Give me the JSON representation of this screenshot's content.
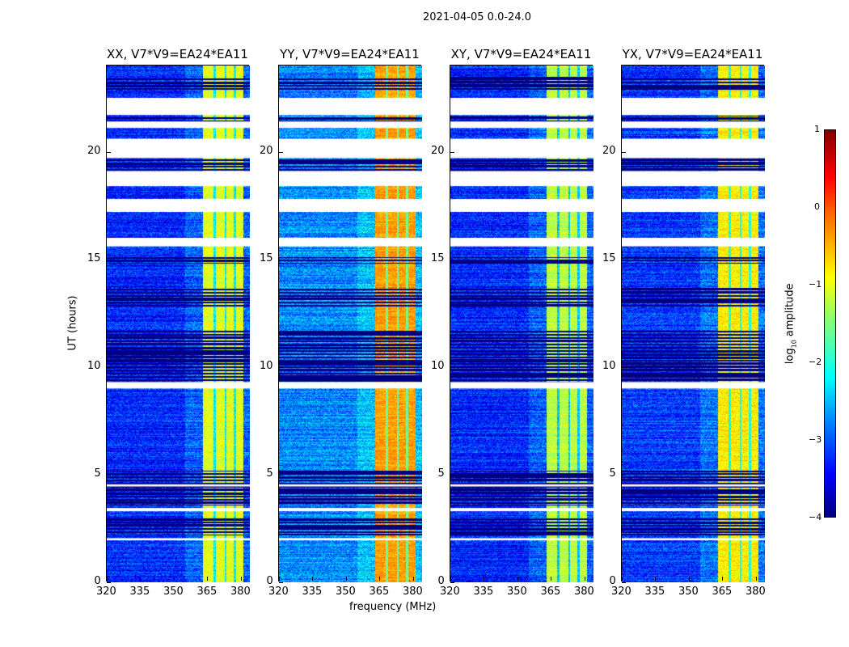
{
  "chart_data": {
    "type": "heatmap",
    "title": "2021-04-05 0.0-24.0",
    "xlabel": "frequency (MHz)",
    "ylabel": "UT (hours)",
    "xlim": [
      320,
      384
    ],
    "ylim": [
      0,
      24
    ],
    "xticks": [
      "320",
      "335",
      "350",
      "365",
      "380"
    ],
    "xtick_values": [
      320,
      335,
      350,
      365,
      380
    ],
    "yticks": [
      "0",
      "5",
      "10",
      "15",
      "20"
    ],
    "ytick_values": [
      0,
      5,
      10,
      15,
      20
    ],
    "colorbar": {
      "label": "log10 amplitude",
      "label_main": "log",
      "label_sub": "10",
      "label_rest": " amplitude",
      "range": [
        -4,
        1
      ],
      "ticks": [
        "1",
        "0",
        "−1",
        "−2",
        "−3",
        "−4"
      ],
      "tick_values": [
        1,
        0,
        -1,
        -2,
        -3,
        -4
      ],
      "colormap": "jet"
    },
    "band_MHz": [
      363,
      381
    ],
    "band_notches_MHz": [
      368,
      373,
      377
    ],
    "flagged_no_data_hours": [
      [
        21.7,
        22.5
      ],
      [
        21.1,
        21.4
      ],
      [
        19.7,
        20.6
      ],
      [
        18.4,
        19.1
      ],
      [
        17.2,
        17.8
      ],
      [
        15.6,
        16.0
      ],
      [
        9.0,
        9.3
      ],
      [
        4.45,
        4.55
      ],
      [
        3.3,
        3.45
      ],
      [
        1.95,
        2.05
      ]
    ],
    "low_amplitude_hours": [
      [
        22.9,
        23.5
      ],
      [
        21.4,
        21.7
      ],
      [
        19.1,
        19.7
      ],
      [
        14.8,
        15.1
      ],
      [
        12.8,
        13.7
      ],
      [
        9.3,
        11.7
      ],
      [
        3.6,
        5.2
      ],
      [
        2.2,
        3.0
      ]
    ],
    "panels": [
      {
        "title": "XX, V7*V9=EA24*EA11",
        "background_log_amp": -3.2,
        "band_log_amp": -1.0
      },
      {
        "title": "YY, V7*V9=EA24*EA11",
        "background_log_amp": -2.7,
        "band_log_amp": -0.4
      },
      {
        "title": "XY, V7*V9=EA24*EA11",
        "background_log_amp": -3.2,
        "band_log_amp": -1.2
      },
      {
        "title": "YX, V7*V9=EA24*EA11",
        "background_log_amp": -3.1,
        "band_log_amp": -0.8
      }
    ]
  }
}
